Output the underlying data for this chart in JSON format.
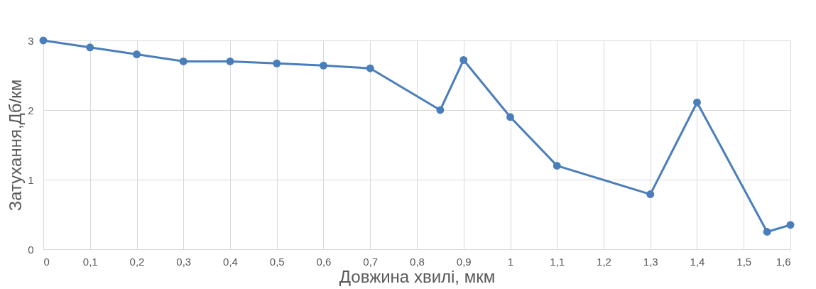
{
  "chart_data": {
    "type": "line",
    "xlabel": "Довжина хвилі, мкм",
    "ylabel": "Затухання,Дб/км",
    "x": [
      0,
      0.1,
      0.2,
      0.3,
      0.4,
      0.5,
      0.6,
      0.7,
      0.85,
      0.9,
      1,
      1.1,
      1.3,
      1.4,
      1.55,
      1.6
    ],
    "series": [
      {
        "color": "#4a7ebb",
        "values": [
          3,
          2.9,
          2.8,
          2.7,
          2.7,
          2.67,
          2.64,
          2.6,
          2.0,
          2.72,
          1.9,
          1.2,
          0.79,
          2.11,
          0.25,
          0.35
        ]
      }
    ],
    "xlim": [
      0,
      1.6
    ],
    "xticks": [
      0,
      {
        "value": 0.1,
        "label": "0,1"
      },
      {
        "value": 0.2,
        "label": "0,2"
      },
      {
        "value": 0.3,
        "label": "0,3"
      },
      {
        "value": 0.4,
        "label": "0,4"
      },
      {
        "value": 0.5,
        "label": "0,5"
      },
      {
        "value": 0.6,
        "label": "0,6"
      },
      {
        "value": 0.7,
        "label": "0,7"
      },
      {
        "value": 0.8,
        "label": "0,8"
      },
      {
        "value": 0.9,
        "label": "0,9"
      },
      1,
      {
        "value": 1.1,
        "label": "1,1"
      },
      {
        "value": 1.2,
        "label": "1,2"
      },
      {
        "value": 1.3,
        "label": "1,3"
      },
      {
        "value": 1.4,
        "label": "1,4"
      },
      {
        "value": 1.5,
        "label": "1,5"
      },
      {
        "value": 1.6,
        "label": "1,6"
      }
    ],
    "ylim": [
      0,
      3
    ],
    "yticks": [
      0,
      1,
      2,
      3
    ],
    "grid": true,
    "marker": "circle",
    "line_style": "solid"
  }
}
